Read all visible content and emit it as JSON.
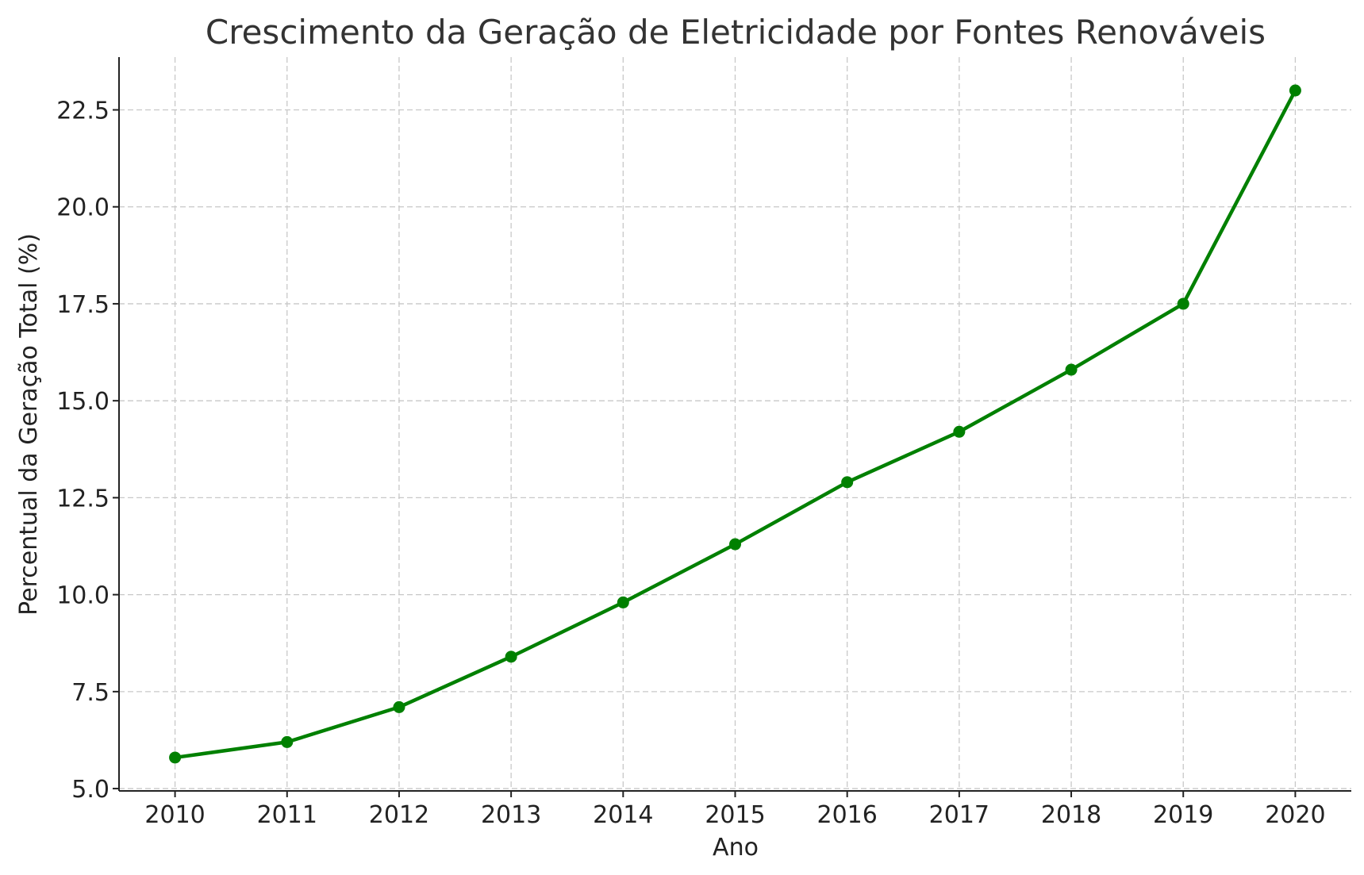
{
  "chart_data": {
    "type": "line",
    "title": "Crescimento da Geração de Eletricidade por Fontes Renováveis",
    "xlabel": "Ano",
    "ylabel": "Percentual da Geração Total (%)",
    "x": [
      2010,
      2011,
      2012,
      2013,
      2014,
      2015,
      2016,
      2017,
      2018,
      2019,
      2020
    ],
    "x_tick_labels": [
      "2010",
      "2011",
      "2012",
      "2013",
      "2014",
      "2015",
      "2016",
      "2017",
      "2018",
      "2019",
      "2020"
    ],
    "series": [
      {
        "values": [
          5.8,
          6.2,
          7.1,
          8.4,
          9.8,
          11.3,
          12.9,
          14.2,
          15.8,
          17.5,
          23.0
        ],
        "color": "#008000",
        "marker": "circle"
      }
    ],
    "y_ticks": [
      5.0,
      7.5,
      10.0,
      12.5,
      15.0,
      17.5,
      20.0,
      22.5
    ],
    "y_tick_labels": [
      "5.0",
      "7.5",
      "10.0",
      "12.5",
      "15.0",
      "17.5",
      "20.0",
      "22.5"
    ],
    "xlim": [
      2009.5,
      2020.5
    ],
    "ylim": [
      4.94,
      23.86
    ],
    "grid": true,
    "grid_style": "dashed"
  }
}
